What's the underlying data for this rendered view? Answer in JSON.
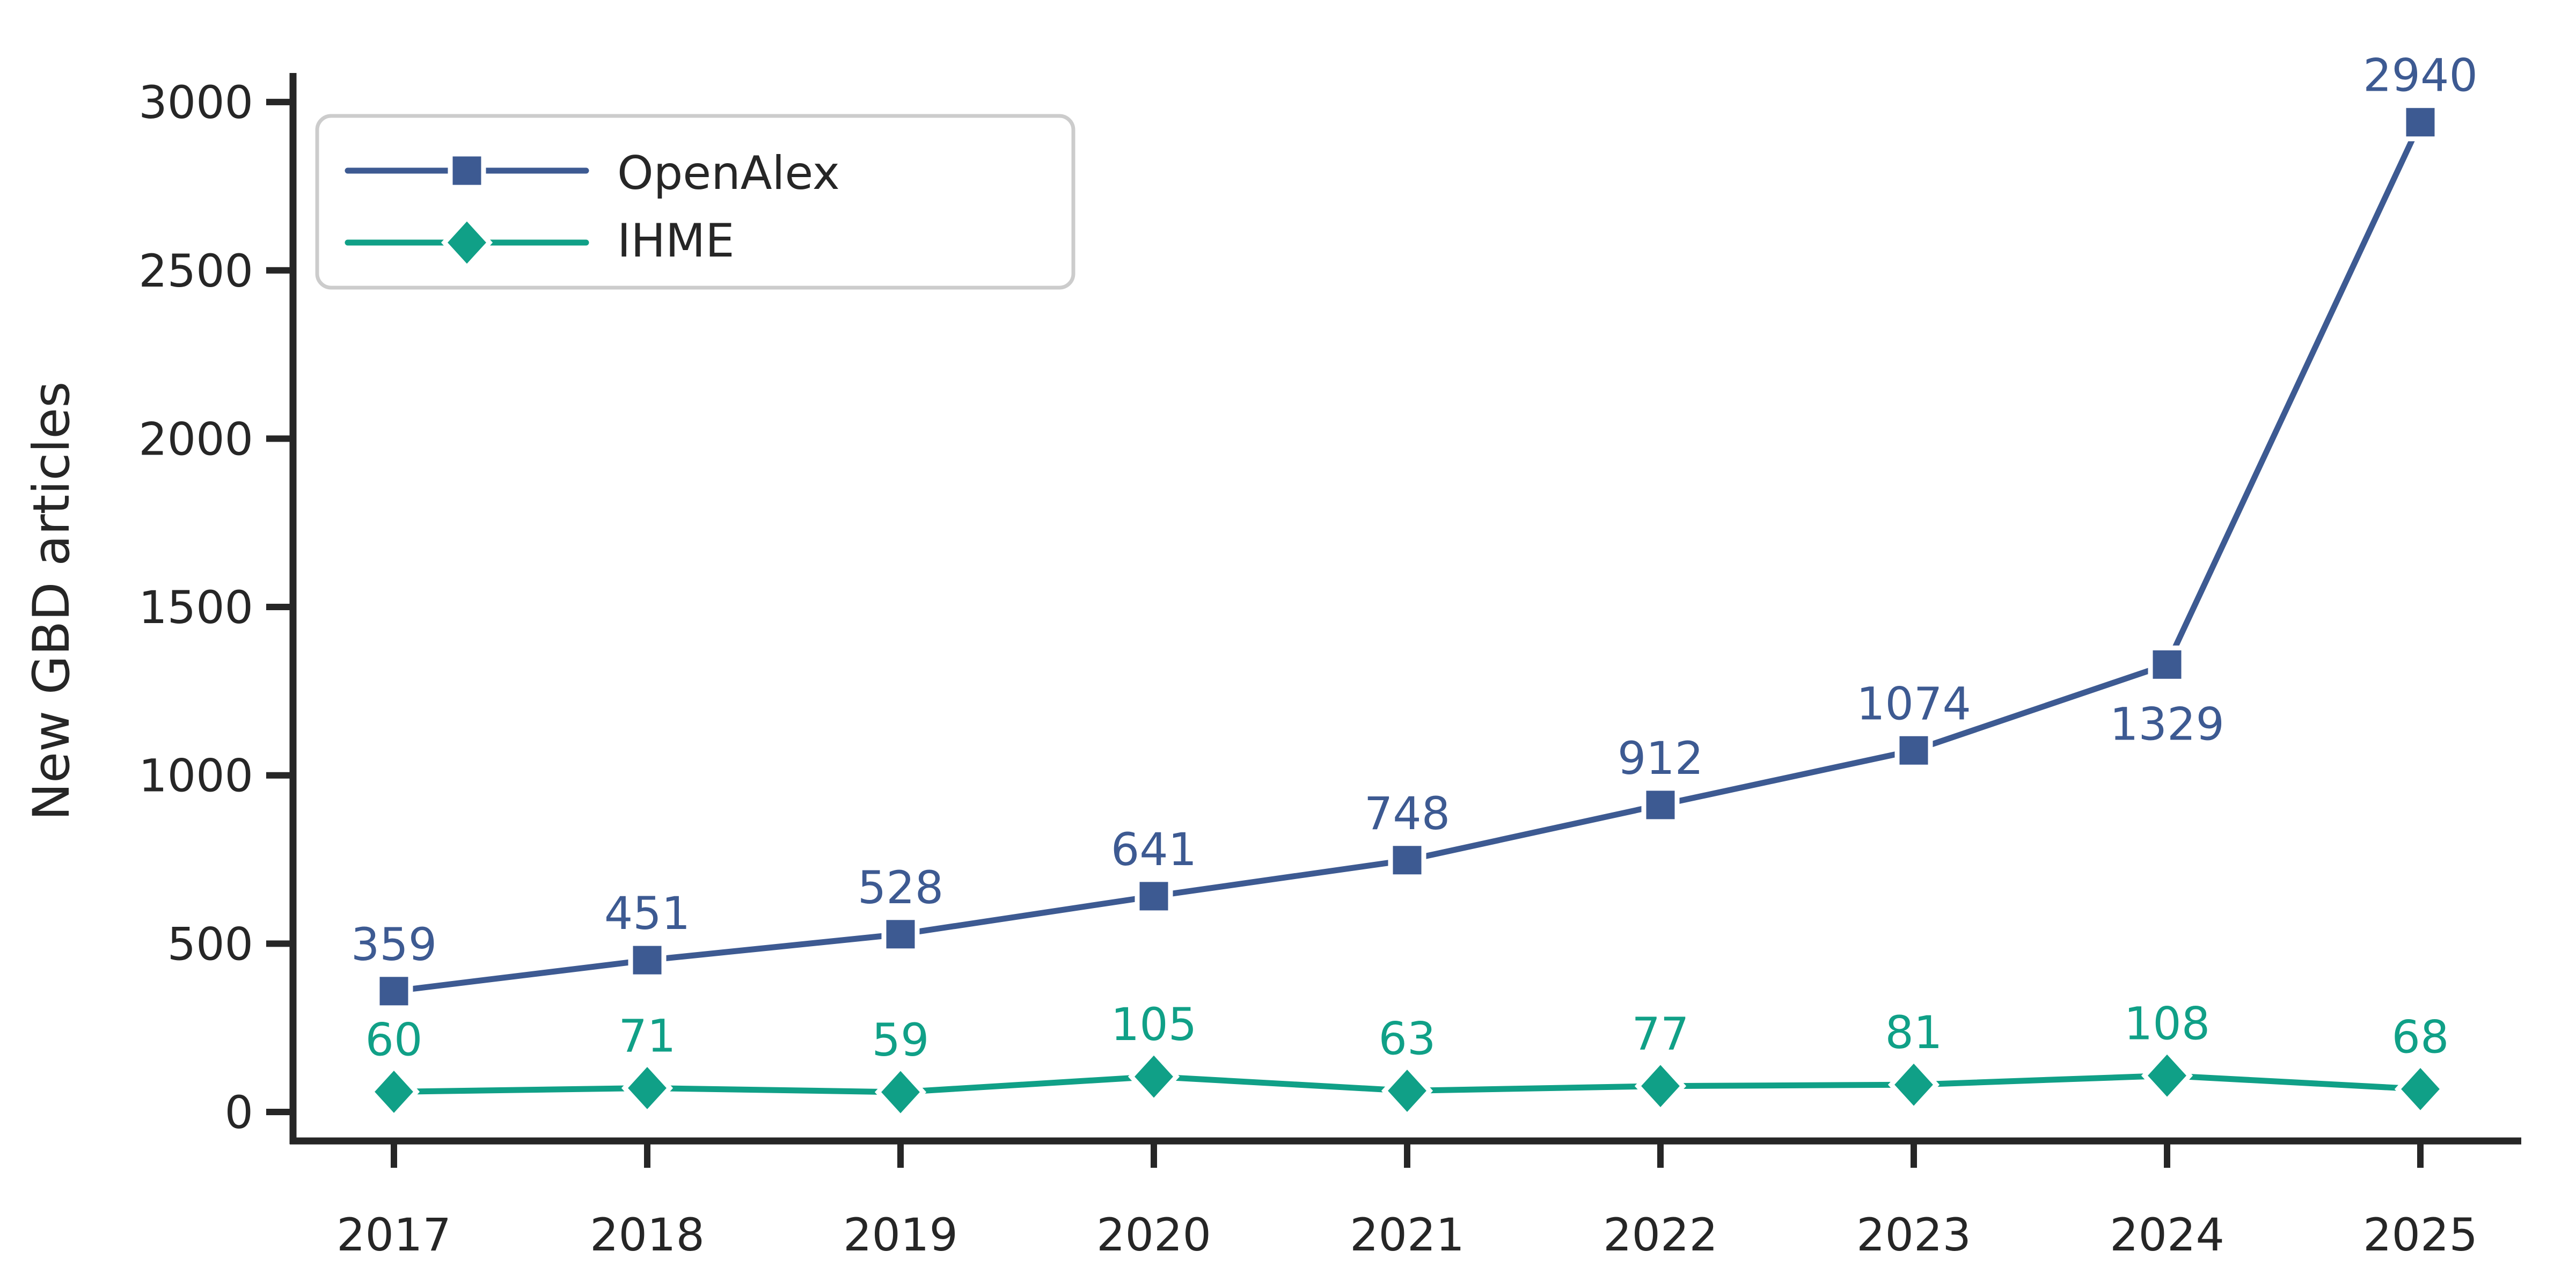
{
  "chart_data": {
    "type": "line",
    "title": "",
    "xlabel": "",
    "ylabel": "New GBD articles",
    "x": [
      2017,
      2018,
      2019,
      2020,
      2021,
      2022,
      2023,
      2024,
      2025
    ],
    "x_tick_labels": [
      "2017",
      "2018",
      "2019",
      "2020",
      "2021",
      "2022",
      "2023",
      "2024",
      "2025"
    ],
    "y_ticks": [
      0,
      500,
      1000,
      1500,
      2000,
      2500,
      3000
    ],
    "y_tick_labels": [
      "0",
      "500",
      "1000",
      "1500",
      "2000",
      "2500",
      "3000"
    ],
    "ylim": [
      -85,
      3085
    ],
    "grid": false,
    "legend_position": "upper left",
    "series": [
      {
        "name": "OpenAlex",
        "marker": "square",
        "color": "#3D5A92",
        "values": [
          359,
          451,
          528,
          641,
          748,
          912,
          1074,
          1329,
          2940
        ],
        "value_labels": [
          "359",
          "451",
          "528",
          "641",
          "748",
          "912",
          "1074",
          "1329",
          "2940"
        ],
        "label_placement": [
          "above",
          "above",
          "above",
          "above",
          "above",
          "above",
          "above",
          "below",
          "above"
        ]
      },
      {
        "name": "IHME",
        "marker": "diamond",
        "color": "#10A087",
        "values": [
          60,
          71,
          59,
          105,
          63,
          77,
          81,
          108,
          68
        ],
        "value_labels": [
          "60",
          "71",
          "59",
          "105",
          "63",
          "77",
          "81",
          "108",
          "68"
        ],
        "label_placement": [
          "above",
          "above",
          "above",
          "above",
          "above",
          "above",
          "above",
          "above",
          "above"
        ]
      }
    ]
  },
  "colors": {
    "background": "#FFFFFF",
    "text": "#262626",
    "spine": "#262626",
    "legend_border": "#CCCCCC",
    "marker_edge": "#FFFFFF"
  }
}
